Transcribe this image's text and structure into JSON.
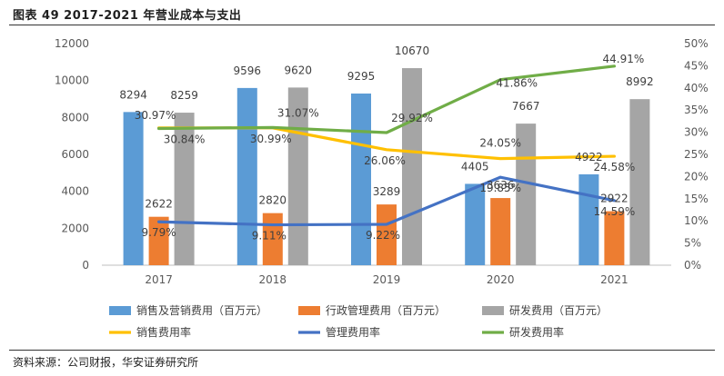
{
  "figure": {
    "title": "图表 49 2017-2021 年营业成本与支出",
    "source": "资料来源：公司财报，华安证券研究所"
  },
  "colors": {
    "sales_bar": "#5B9BD5",
    "admin_bar": "#ED7D31",
    "rd_bar": "#A5A5A5",
    "sales_rate": "#FFC000",
    "admin_rate": "#4472C4",
    "rd_rate": "#70AD47",
    "axis": "#BFBFBF"
  },
  "chart_data": {
    "type": "bar",
    "categories": [
      "2017",
      "2018",
      "2019",
      "2020",
      "2021"
    ],
    "series": [
      {
        "name": "销售及营销费用（百万元）",
        "kind": "bar",
        "axis": "left",
        "values": [
          8294,
          9596,
          9295,
          4405,
          4922
        ],
        "labels": [
          "8294",
          "9596",
          "9295",
          "4405",
          "4922"
        ]
      },
      {
        "name": "行政管理费用（百万元）",
        "kind": "bar",
        "axis": "left",
        "values": [
          2622,
          2820,
          3289,
          3636,
          2922
        ],
        "labels": [
          "2622",
          "2820",
          "3289",
          "3636",
          "2922"
        ]
      },
      {
        "name": "研发费用（百万元）",
        "kind": "bar",
        "axis": "left",
        "values": [
          8259,
          9620,
          10670,
          7667,
          8992
        ],
        "labels": [
          "8259",
          "9620",
          "10670",
          "7667",
          "8992"
        ]
      },
      {
        "name": "销售费用率",
        "kind": "line",
        "axis": "right",
        "values": [
          30.97,
          30.99,
          26.06,
          24.05,
          24.58
        ],
        "labels": [
          "30.97%",
          "30.99%",
          "26.06%",
          "24.05%",
          "24.58%"
        ]
      },
      {
        "name": "管理费用率",
        "kind": "line",
        "axis": "right",
        "values": [
          9.79,
          9.11,
          9.22,
          19.85,
          14.59
        ],
        "labels": [
          "9.79%",
          "9.11%",
          "9.22%",
          "19.85%",
          "14.59%"
        ]
      },
      {
        "name": "研发费用率",
        "kind": "line",
        "axis": "right",
        "values": [
          30.84,
          31.07,
          29.92,
          41.86,
          44.91
        ],
        "labels": [
          "30.84%",
          "31.07%",
          "29.92%",
          "41.86%",
          "44.91%"
        ]
      }
    ],
    "y_left": {
      "min": 0,
      "max": 12000,
      "ticks": [
        "0",
        "2000",
        "4000",
        "6000",
        "8000",
        "10000",
        "12000"
      ]
    },
    "y_right": {
      "min": 0,
      "max": 50,
      "ticks": [
        "0%",
        "5%",
        "10%",
        "15%",
        "20%",
        "25%",
        "30%",
        "35%",
        "40%",
        "45%",
        "50%"
      ]
    },
    "grid": false,
    "legend_position": "bottom"
  }
}
